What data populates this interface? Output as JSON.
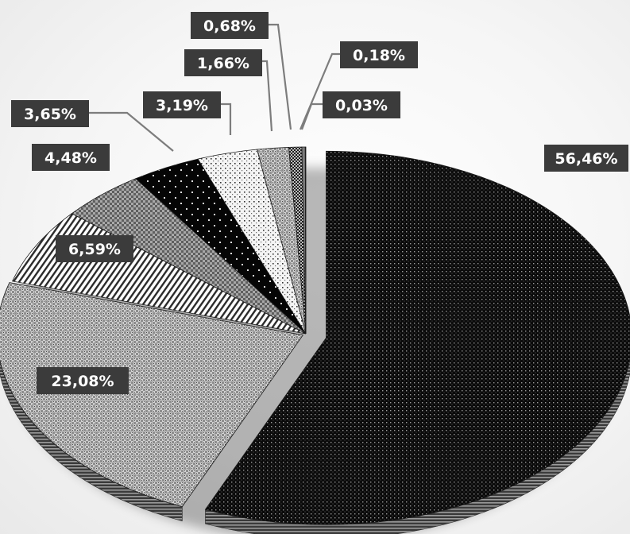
{
  "chart_data": {
    "type": "pie",
    "title": "",
    "legend": "none",
    "slices": [
      {
        "label": "56,46%",
        "value": 56.46,
        "pattern": "dots-dark"
      },
      {
        "label": "23,08%",
        "value": 23.08,
        "pattern": "checker-gray"
      },
      {
        "label": "6,59%",
        "value": 6.59,
        "pattern": "diagonal-stripes"
      },
      {
        "label": "4,48%",
        "value": 4.48,
        "pattern": "checker-gray-dark"
      },
      {
        "label": "3,65%",
        "value": 3.65,
        "pattern": "sparse-dots-black"
      },
      {
        "label": "3,19%",
        "value": 3.19,
        "pattern": "dots-light"
      },
      {
        "label": "1,66%",
        "value": 1.66,
        "pattern": "checker-gray"
      },
      {
        "label": "0,68%",
        "value": 0.68,
        "pattern": "checker-fine"
      },
      {
        "label": "0,18%",
        "value": 0.18,
        "pattern": "solid-gray"
      },
      {
        "label": "0,03%",
        "value": 0.03,
        "pattern": "solid-dark"
      }
    ]
  }
}
